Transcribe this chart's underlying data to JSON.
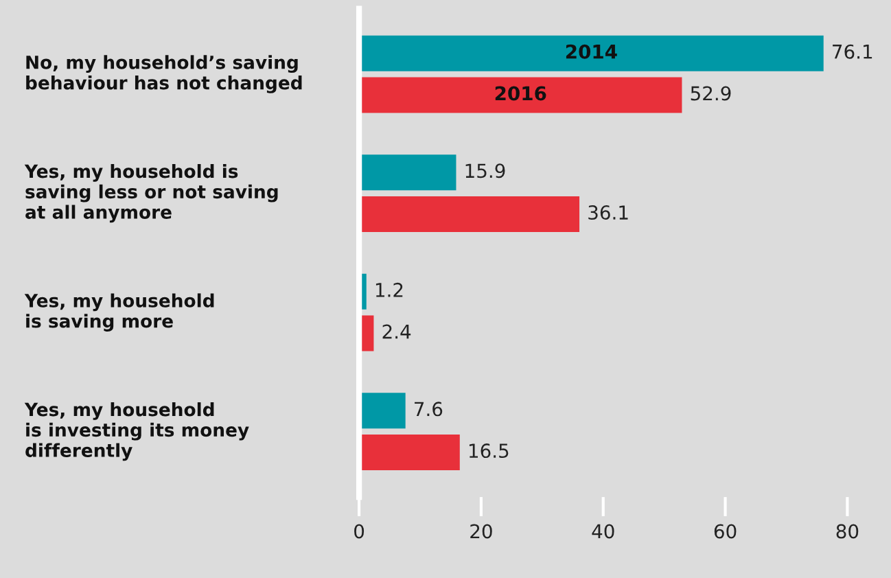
{
  "chart_data": {
    "type": "bar",
    "orientation": "horizontal",
    "categories": [
      "No, my household’s saving\nbehaviour has not changed",
      "Yes, my household is\nsaving less or not saving\nat all anymore",
      "Yes, my household\nis saving more",
      "Yes, my household\nis investing its money\ndifferently"
    ],
    "series": [
      {
        "name": "2014",
        "color": "#0098a6",
        "values": [
          76.1,
          15.9,
          1.2,
          7.6
        ]
      },
      {
        "name": "2016",
        "color": "#e8303a",
        "values": [
          52.9,
          36.1,
          2.4,
          16.5
        ]
      }
    ],
    "xlim": [
      0,
      80
    ],
    "xticks": [
      0,
      20,
      40,
      60,
      80
    ],
    "data_labels": true,
    "grid": false,
    "legend": false
  }
}
